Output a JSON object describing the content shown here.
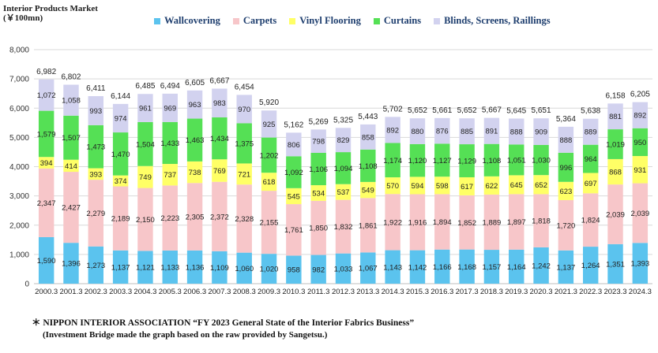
{
  "title_line1": "Interior Products Market",
  "title_line2": "(￥100mn)",
  "legend": [
    {
      "label": "Wallcovering",
      "color": "#5bc3ee"
    },
    {
      "label": "Carpets",
      "color": "#f7c6c9"
    },
    {
      "label": "Vinyl Flooring",
      "color": "#ffff66"
    },
    {
      "label": "Curtains",
      "color": "#55e055"
    },
    {
      "label": "Blinds, Screens, Raillings",
      "color": "#d2d2ef"
    }
  ],
  "footnote_line1": "＊ NIPPON  INTERIOR  ASSOCIATION “FY 2023 General State of the Interior Fabrics Business”",
  "footnote_line2": "(Investment Bridge made the graph based on the raw provided by Sangetsu.)",
  "chart_data": {
    "type": "bar",
    "stacked": true,
    "categories": [
      "2000.3",
      "2001.3",
      "2002.3",
      "2003.3",
      "2004.3",
      "2005.3",
      "2006.3",
      "2007.3",
      "2008.3",
      "2009.3",
      "2010.3",
      "2011.3",
      "2012.3",
      "2013.3",
      "2014.3",
      "2015.3",
      "2016.3",
      "2017.3",
      "2018.3",
      "2019.3",
      "2020.3",
      "2021.3",
      "2022.3",
      "2023.3",
      "2024.3"
    ],
    "series": [
      {
        "name": "Wallcovering",
        "color": "#5bc3ee",
        "values": [
          1590,
          1396,
          1273,
          1137,
          1121,
          1133,
          1136,
          1109,
          1060,
          1020,
          958,
          982,
          1033,
          1067,
          1143,
          1142,
          1166,
          1168,
          1157,
          1164,
          1242,
          1137,
          1264,
          1351,
          1393
        ]
      },
      {
        "name": "Carpets",
        "color": "#f7c6c9",
        "values": [
          2347,
          2427,
          2279,
          2189,
          2150,
          2223,
          2305,
          2372,
          2328,
          2155,
          1761,
          1850,
          1832,
          1861,
          1922,
          1916,
          1894,
          1852,
          1889,
          1897,
          1818,
          1720,
          1824,
          2039,
          2039
        ]
      },
      {
        "name": "Vinyl Flooring",
        "color": "#ffff66",
        "values": [
          394,
          414,
          393,
          374,
          749,
          737,
          738,
          769,
          721,
          618,
          545,
          534,
          537,
          549,
          570,
          594,
          598,
          617,
          622,
          645,
          652,
          623,
          697,
          868,
          931
        ]
      },
      {
        "name": "Curtains",
        "color": "#55e055",
        "values": [
          1579,
          1507,
          1473,
          1470,
          1504,
          1433,
          1463,
          1434,
          1375,
          1202,
          1092,
          1106,
          1094,
          1108,
          1174,
          1120,
          1127,
          1129,
          1108,
          1051,
          1030,
          996,
          964,
          1019,
          950
        ]
      },
      {
        "name": "Blinds, Screens, Raillings",
        "color": "#d2d2ef",
        "values": [
          1072,
          1058,
          993,
          974,
          961,
          969,
          963,
          983,
          970,
          925,
          806,
          798,
          829,
          858,
          892,
          880,
          876,
          885,
          891,
          888,
          909,
          888,
          889,
          881,
          892
        ]
      }
    ],
    "totals": [
      6982,
      6802,
      6411,
      6144,
      6485,
      6494,
      6605,
      6667,
      6454,
      5920,
      5162,
      5269,
      5325,
      5443,
      5702,
      5652,
      5661,
      5652,
      5667,
      5645,
      5651,
      5364,
      5638,
      6158,
      6205
    ],
    "ylim": [
      0,
      8000
    ],
    "yticks": [
      0,
      1000,
      2000,
      3000,
      4000,
      5000,
      6000,
      7000,
      8000
    ],
    "grid": true,
    "legend_position": "top"
  }
}
